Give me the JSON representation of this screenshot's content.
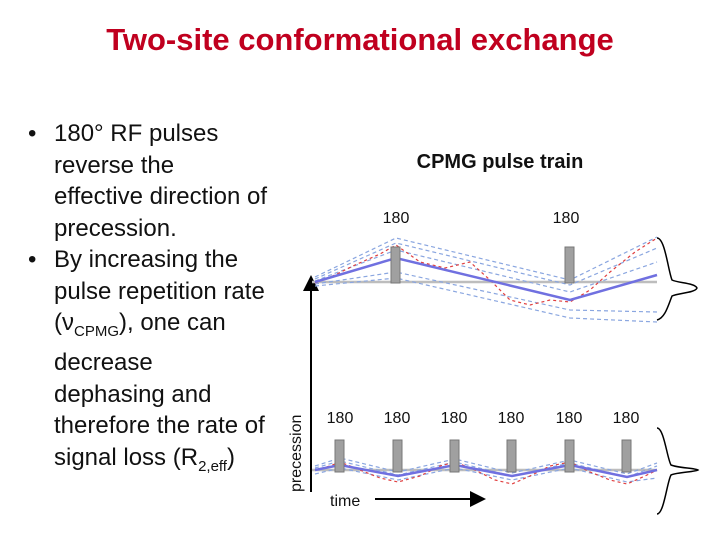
{
  "slide": {
    "title": "Two-site conformational exchange",
    "bullets": [
      {
        "marker": "•",
        "text": "180° RF pulses reverse the effective direction of precession."
      },
      {
        "marker": "•",
        "text_before": "By increasing the pulse repetition rate (",
        "nu": "ν",
        "sub": "CPMG",
        "text_middle": "), one can decrease dephasing and therefore the rate of signal loss (",
        "r": "R",
        "sub2": "2,eff",
        "text_after": ")"
      }
    ]
  },
  "diagram": {
    "heading": "CPMG pulse train",
    "y_axis_label": "precession",
    "x_axis_label": "time",
    "top_train": {
      "pulse_labels": [
        "180",
        "180"
      ]
    },
    "bottom_train": {
      "pulse_labels": [
        "180",
        "180",
        "180",
        "180",
        "180",
        "180"
      ]
    },
    "colors": {
      "pulse_fill": "#a0a0a0",
      "mean_line": "#7070e0",
      "dashed_blue": "#8aa6e0",
      "dashed_red": "#e04040",
      "baseline": "#bdbdbd",
      "title": "#c0001f"
    }
  }
}
